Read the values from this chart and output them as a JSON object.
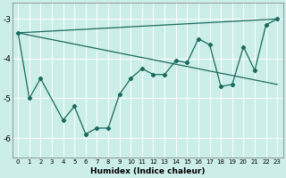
{
  "xlabel": "Humidex (Indice chaleur)",
  "bg_color": "#cceee8",
  "line_color": "#1a6b5e",
  "grid_color": "#ffffff",
  "xlim": [
    -0.5,
    23.5
  ],
  "ylim": [
    -6.5,
    -2.6
  ],
  "yticks": [
    -6,
    -5,
    -4,
    -3
  ],
  "xticks": [
    0,
    1,
    2,
    3,
    4,
    5,
    6,
    7,
    8,
    9,
    10,
    11,
    12,
    13,
    14,
    15,
    16,
    17,
    18,
    19,
    20,
    21,
    22,
    23
  ],
  "main_series": {
    "x": [
      0,
      1,
      2,
      4,
      5,
      6,
      7,
      8,
      9,
      10,
      11,
      12,
      13,
      14,
      15,
      16,
      17,
      18,
      19,
      20,
      21,
      22,
      23
    ],
    "y": [
      -3.35,
      -5.0,
      -4.5,
      -5.55,
      -5.2,
      -5.9,
      -5.75,
      -5.75,
      -4.9,
      -4.5,
      -4.25,
      -4.4,
      -4.4,
      -4.05,
      -4.1,
      -3.5,
      -3.65,
      -4.7,
      -4.65,
      -3.7,
      -4.3,
      -3.15,
      -3.0
    ]
  },
  "line1": {
    "x": [
      0,
      23
    ],
    "y": [
      -3.35,
      -3.0
    ]
  },
  "line2": {
    "x": [
      0,
      23
    ],
    "y": [
      -3.35,
      -4.65
    ]
  }
}
